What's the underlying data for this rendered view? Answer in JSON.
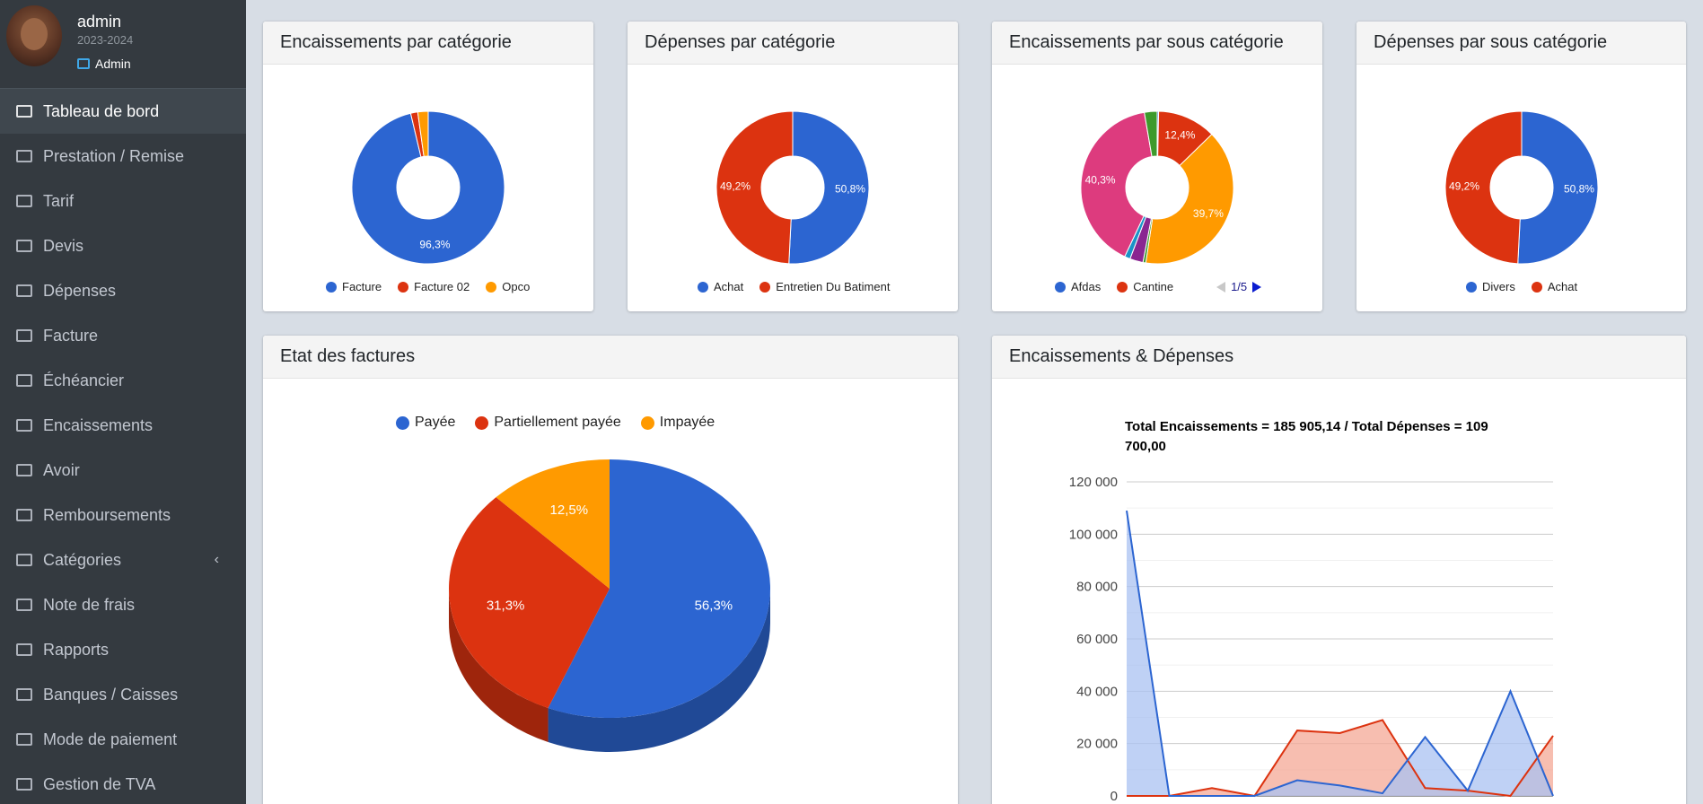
{
  "user": {
    "name": "admin",
    "year": "2023-2024",
    "role": "Admin"
  },
  "menu": [
    {
      "label": "Tableau de bord",
      "icon": "laptop-icon",
      "active": true
    },
    {
      "label": "Prestation / Remise",
      "icon": "credit-card-icon"
    },
    {
      "label": "Tarif",
      "icon": "coins-icon"
    },
    {
      "label": "Devis",
      "icon": "file-text-icon"
    },
    {
      "label": "Dépenses",
      "icon": "sitemap-icon"
    },
    {
      "label": "Facture",
      "icon": "file-text-icon"
    },
    {
      "label": "Échéancier",
      "icon": "credit-card-icon"
    },
    {
      "label": "Encaissements",
      "icon": "cash-register-icon"
    },
    {
      "label": "Avoir",
      "icon": "file-text-icon"
    },
    {
      "label": "Remboursements",
      "icon": "coins-icon"
    },
    {
      "label": "Catégories",
      "icon": "list-icon",
      "chevron": "‹"
    },
    {
      "label": "Note de frais",
      "icon": "money-bill-icon"
    },
    {
      "label": "Rapports",
      "icon": "copy-icon"
    },
    {
      "label": "Banques / Caisses",
      "icon": "credit-card-icon"
    },
    {
      "label": "Mode de paiement",
      "icon": "credit-card-icon"
    },
    {
      "label": "Gestion de TVA",
      "icon": "money-bill-icon"
    }
  ],
  "colors": {
    "blue": "#2c65d1",
    "red": "#dc3310",
    "orange": "#ff9a00",
    "green": "#3d9a2c",
    "pink": "#dd3b7e",
    "purple": "#8a2591",
    "cyan": "#1a93c7"
  },
  "cards": {
    "enc_cat": {
      "title": "Encaissements par catégorie"
    },
    "dep_cat": {
      "title": "Dépenses par catégorie"
    },
    "enc_sous": {
      "title": "Encaissements par sous catégorie",
      "pager": "1/5"
    },
    "dep_sous": {
      "title": "Dépenses par sous catégorie"
    },
    "factures": {
      "title": "Etat des factures"
    },
    "enc_dep": {
      "title": "Encaissements & Dépenses"
    }
  },
  "chart_data": [
    {
      "id": "enc_cat",
      "type": "pie",
      "donut": true,
      "slices": [
        {
          "name": "Facture",
          "value": 96.3,
          "label": "96,3%",
          "color": "#2c65d1"
        },
        {
          "name": "Facture 02",
          "value": 1.5,
          "label": "",
          "color": "#dc3310"
        },
        {
          "name": "Opco",
          "value": 2.2,
          "label": "",
          "color": "#ff9a00"
        }
      ]
    },
    {
      "id": "dep_cat",
      "type": "pie",
      "donut": true,
      "slices": [
        {
          "name": "Achat",
          "value": 50.8,
          "label": "50,8%",
          "color": "#2c65d1"
        },
        {
          "name": "Entretien Du Batiment",
          "value": 49.2,
          "label": "49,2%",
          "color": "#dc3310"
        }
      ]
    },
    {
      "id": "enc_sous",
      "type": "pie",
      "donut": true,
      "legend_items": [
        "Afdas",
        "Cantine"
      ],
      "slices": [
        {
          "name": "Afdas",
          "value": 0.3,
          "label": "",
          "color": "#2c65d1"
        },
        {
          "name": "Cantine",
          "value": 12.4,
          "label": "12,4%",
          "color": "#dc3310"
        },
        {
          "name": "",
          "value": 39.7,
          "label": "39,7%",
          "color": "#ff9a00"
        },
        {
          "name": "",
          "value": 0.6,
          "label": "",
          "color": "#3d9a2c"
        },
        {
          "name": "",
          "value": 2.8,
          "label": "",
          "color": "#8a2591"
        },
        {
          "name": "",
          "value": 1.2,
          "label": "",
          "color": "#1a93c7"
        },
        {
          "name": "",
          "value": 40.3,
          "label": "40,3%",
          "color": "#dd3b7e"
        },
        {
          "name": "",
          "value": 2.7,
          "label": "",
          "color": "#3d9a2c"
        }
      ]
    },
    {
      "id": "dep_sous",
      "type": "pie",
      "donut": true,
      "slices": [
        {
          "name": "Divers",
          "value": 50.8,
          "label": "50,8%",
          "color": "#2c65d1"
        },
        {
          "name": "Achat",
          "value": 49.2,
          "label": "49,2%",
          "color": "#dc3310"
        }
      ]
    },
    {
      "id": "factures",
      "type": "pie",
      "is3d": true,
      "slices": [
        {
          "name": "Payée",
          "value": 56.3,
          "label": "56,3%",
          "color": "#2c65d1"
        },
        {
          "name": "Partiellement payée",
          "value": 31.3,
          "label": "31,3%",
          "color": "#dc3310"
        },
        {
          "name": "Impayée",
          "value": 12.5,
          "label": "12,5%",
          "color": "#ff9a00"
        }
      ]
    },
    {
      "id": "enc_dep",
      "type": "area",
      "title_line1": "Total Encaissements = 185 905,14 / Total Dépenses = 109",
      "title_line2": "700,00",
      "ylim": [
        0,
        120000
      ],
      "yticks": [
        0,
        20000,
        40000,
        60000,
        80000,
        100000,
        120000
      ],
      "ytick_labels": [
        "0",
        "20 000",
        "40 000",
        "60 000",
        "80 000",
        "100 000",
        "120 000"
      ],
      "grid": true,
      "series": [
        {
          "name": "",
          "color": "#2c65d1",
          "fill": "#a9c1f1",
          "values": [
            109000,
            0,
            0,
            0,
            6000,
            4000,
            1000,
            22500,
            2000,
            40000,
            0
          ]
        },
        {
          "name": "",
          "color": "#dc3310",
          "fill": "#f4a895",
          "values": [
            0,
            0,
            3000,
            0,
            25000,
            24000,
            29000,
            3000,
            2000,
            0,
            23000
          ]
        }
      ]
    }
  ]
}
